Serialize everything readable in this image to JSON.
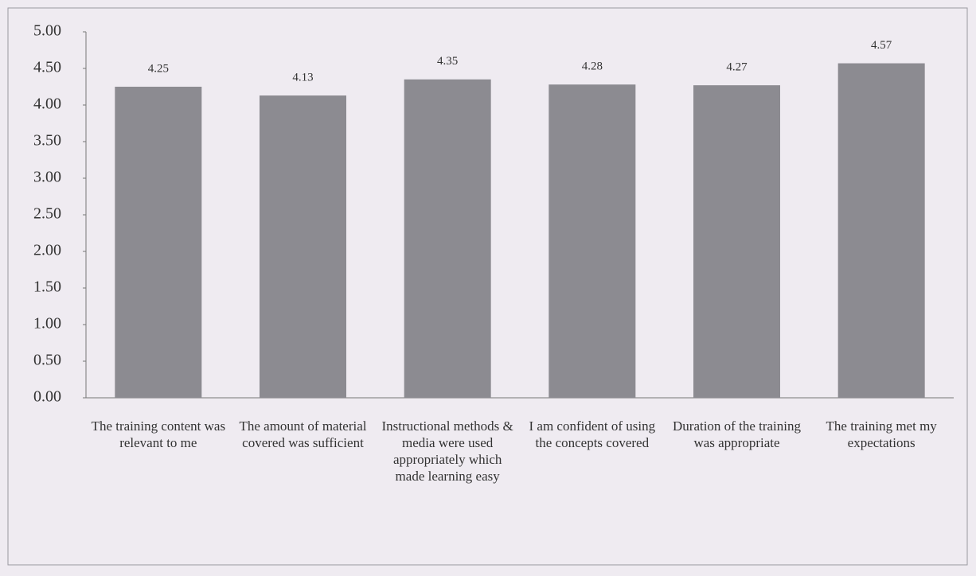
{
  "chart_data": {
    "type": "bar",
    "categories": [
      "The training content was relevant to me",
      "The amount of material covered was sufficient",
      "Instructional methods & media were used appropriately which made learning easy",
      "I am confident of using the concepts covered",
      "Duration of the training was appropriate",
      "The training met my expectations"
    ],
    "values": [
      4.25,
      4.13,
      4.35,
      4.28,
      4.27,
      4.57
    ],
    "color": "#8c8b91",
    "ylim": [
      0,
      5
    ],
    "yticks": [
      {
        "value": 0,
        "label": "0.00"
      },
      {
        "value": 0.5,
        "label": "0.50"
      },
      {
        "value": 1,
        "label": "1.00"
      },
      {
        "value": 1.5,
        "label": "1.50"
      },
      {
        "value": 2,
        "label": "2.00"
      },
      {
        "value": 2.5,
        "label": "2.50"
      },
      {
        "value": 3,
        "label": "3.00"
      },
      {
        "value": 3.5,
        "label": "3.50"
      },
      {
        "value": 4,
        "label": "4.00"
      },
      {
        "value": 4.5,
        "label": "4.50"
      },
      {
        "value": 5,
        "label": "5.00"
      }
    ],
    "grid": false
  }
}
